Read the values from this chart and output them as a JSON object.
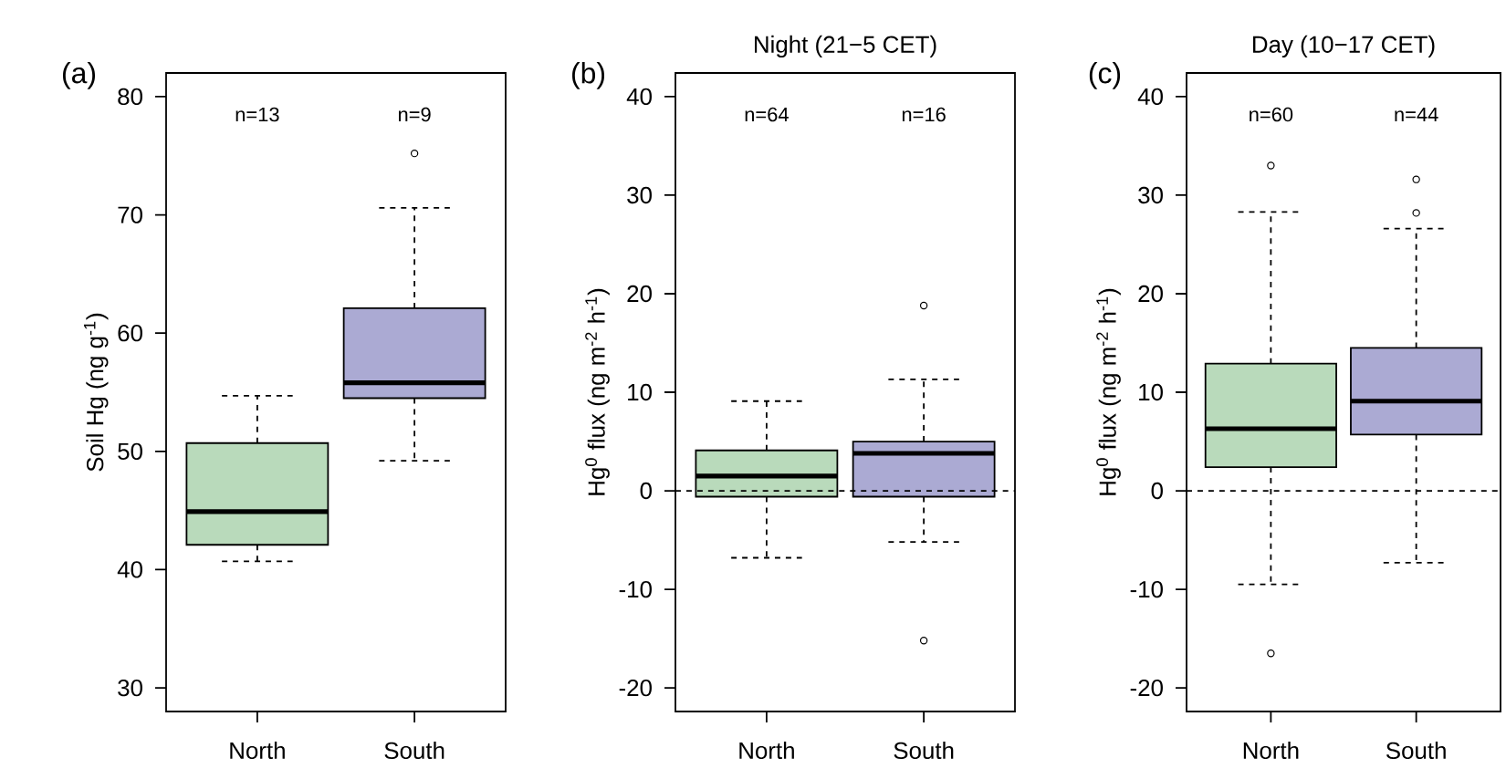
{
  "chart_data": [
    {
      "type": "box",
      "ylabel": "Soil Hg (ng g$^{-1}$)",
      "categories": [
        "North",
        "South"
      ],
      "colors": [
        "#b9dabb",
        "#abaad3"
      ],
      "ylim": [
        28,
        82
      ],
      "yticks": [
        30,
        40,
        50,
        60,
        70,
        80
      ],
      "boxes": [
        {
          "low": 40.7,
          "q1": 42.1,
          "median": 44.9,
          "q3": 50.7,
          "high": 54.7
        },
        {
          "low": 49.2,
          "q1": 54.5,
          "median": 55.8,
          "q3": 62.1,
          "high": 70.6,
          "outliers": [
            75.2
          ]
        }
      ],
      "annotations": [
        "(a)",
        "n=13",
        "n=9"
      ]
    },
    {
      "type": "box",
      "title": "Night (21−5 CET)",
      "ylabel": "Hg$^{0}$ flux (ng m$^{-2}$ h$^{-1}$)",
      "categories": [
        "North",
        "South"
      ],
      "colors": [
        "#b9dabb",
        "#abaad3"
      ],
      "ylim": [
        -22.4,
        42.4
      ],
      "yticks": [
        -20,
        -10,
        0,
        10,
        20,
        30,
        40
      ],
      "boxes": [
        {
          "low": -6.8,
          "q1": -0.6,
          "median": 1.5,
          "q3": 4.1,
          "high": 9.1
        },
        {
          "low": -5.2,
          "q1": -0.6,
          "median": 3.8,
          "q3": 5.0,
          "high": 11.3,
          "outliers": [
            18.8,
            -15.2
          ]
        }
      ],
      "ref_lines": [
        {
          "axis": "y",
          "value": 0,
          "line_style": "dashed"
        }
      ],
      "annotations": [
        "(b)",
        "n=64",
        "n=16"
      ]
    },
    {
      "type": "box",
      "title": "Day (10−17 CET)",
      "ylabel": "Hg$^{0}$ flux (ng m$^{-2}$ h$^{-1}$)",
      "categories": [
        "North",
        "South"
      ],
      "colors": [
        "#b9dabb",
        "#abaad3"
      ],
      "ylim": [
        -22.4,
        42.4
      ],
      "yticks": [
        -20,
        -10,
        0,
        10,
        20,
        30,
        40
      ],
      "boxes": [
        {
          "low": -9.5,
          "q1": 2.4,
          "median": 6.3,
          "q3": 12.9,
          "high": 28.3,
          "outliers": [
            33.0,
            -16.5
          ]
        },
        {
          "low": -7.3,
          "q1": 5.7,
          "median": 9.1,
          "q3": 14.5,
          "high": 26.6,
          "outliers": [
            31.6,
            28.2
          ]
        }
      ],
      "ref_lines": [
        {
          "axis": "y",
          "value": 0,
          "line_style": "dashed"
        }
      ],
      "annotations": [
        "(c)",
        "n=60",
        "n=44"
      ]
    }
  ]
}
